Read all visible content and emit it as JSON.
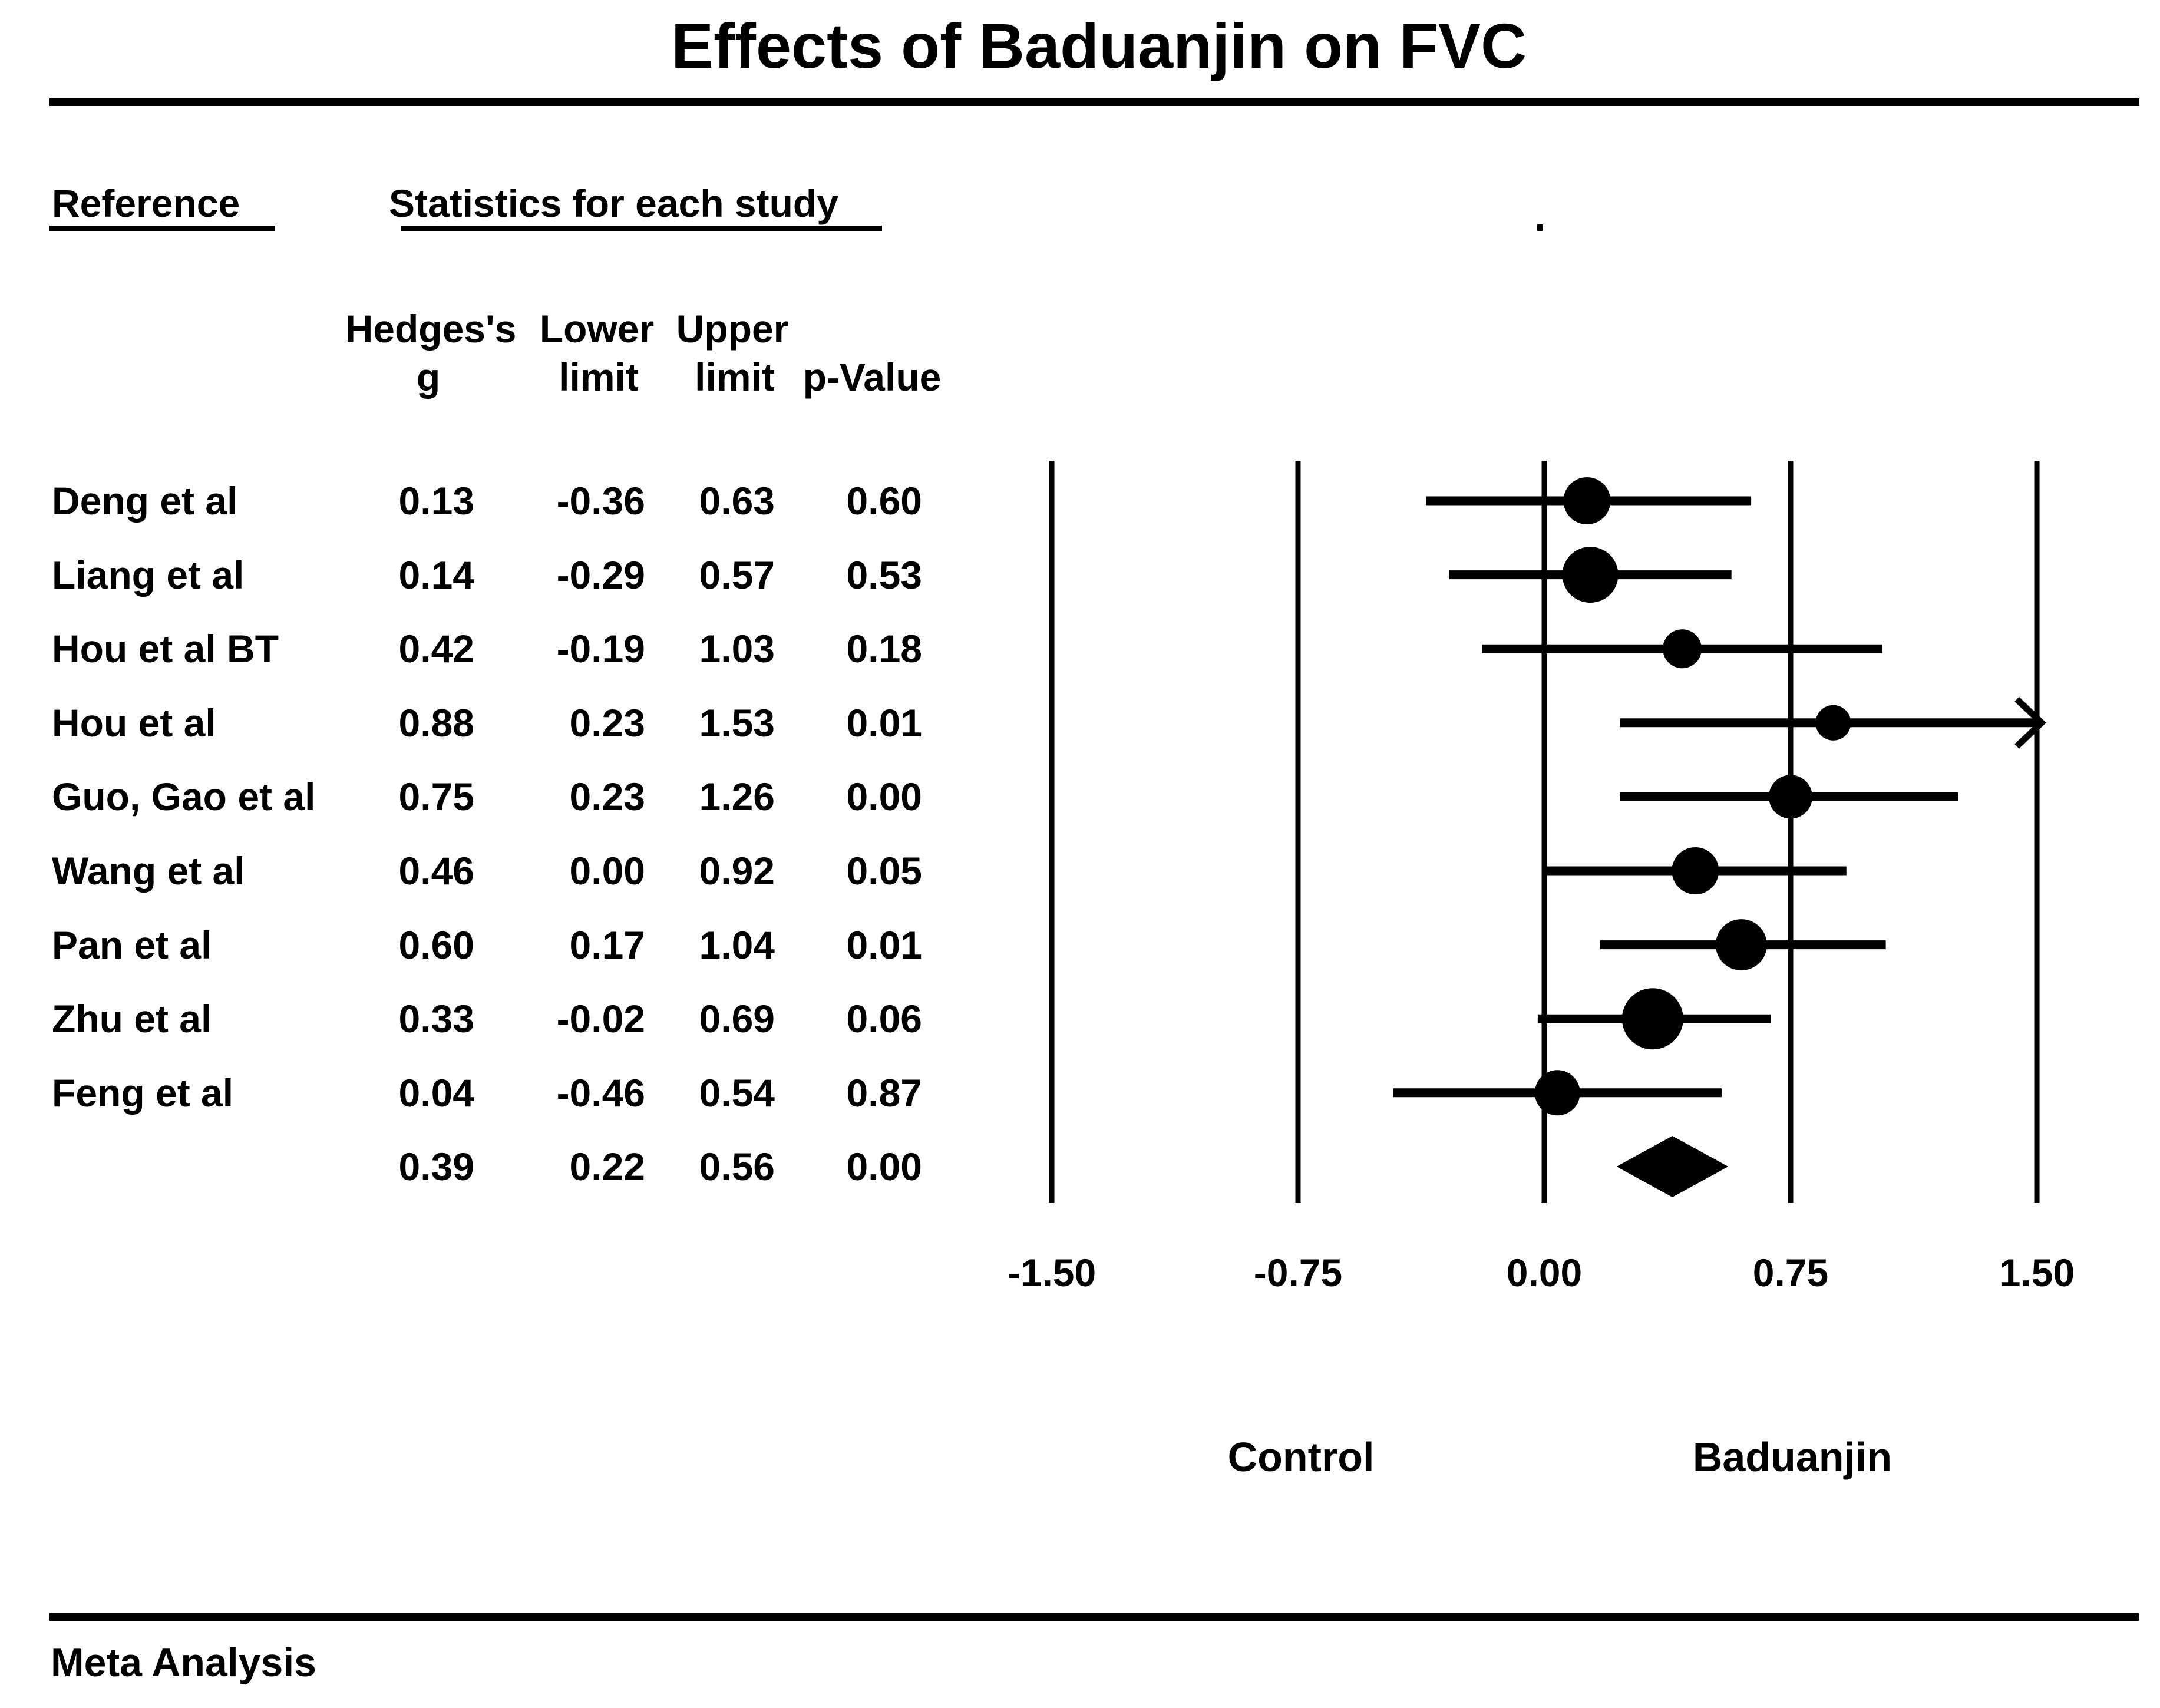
{
  "title": "Effects of Baduanjin on FVC",
  "section_headers": {
    "reference": "Reference",
    "statistics": "Statistics for each study"
  },
  "column_headers": {
    "hedges": "Hedges's",
    "lower": "Lower",
    "upper": "Upper",
    "g": "g",
    "limit1": "limit",
    "limit2": "limit",
    "p": "p-Value"
  },
  "group_labels": {
    "left": "Control",
    "right": "Baduanjin"
  },
  "footer": "Meta Analysis",
  "colors": {
    "ink": "#000000",
    "background": "#ffffff"
  },
  "chart_data": {
    "type": "forest",
    "title": "Effects of Baduanjin on FVC",
    "effect_measure": "Hedges's g",
    "xlim": [
      -1.5,
      1.5
    ],
    "ticks": [
      {
        "value": -1.5,
        "label": "-1.50"
      },
      {
        "value": -0.75,
        "label": "-0.75"
      },
      {
        "value": 0.0,
        "label": "0.00"
      },
      {
        "value": 0.75,
        "label": "0.75"
      },
      {
        "value": 1.5,
        "label": "1.50"
      }
    ],
    "studies": [
      {
        "name": "Deng et al",
        "g": 0.13,
        "lower": -0.36,
        "upper": 0.63,
        "labels": {
          "g": "0.13",
          "lower": "-0.36",
          "upper": "0.63",
          "p": "0.60"
        },
        "marker_px": 80
      },
      {
        "name": "Liang et al",
        "g": 0.14,
        "lower": -0.29,
        "upper": 0.57,
        "labels": {
          "g": "0.14",
          "lower": "-0.29",
          "upper": "0.57",
          "p": "0.53"
        },
        "marker_px": 95
      },
      {
        "name": "Hou et al  BT",
        "g": 0.42,
        "lower": -0.19,
        "upper": 1.03,
        "labels": {
          "g": "0.42",
          "lower": "-0.19",
          "upper": "1.03",
          "p": "0.18"
        },
        "marker_px": 66
      },
      {
        "name": "Hou et al",
        "g": 0.88,
        "lower": 0.23,
        "upper": 1.53,
        "labels": {
          "g": "0.88",
          "lower": "0.23",
          "upper": "1.53",
          "p": "0.01"
        },
        "marker_px": 60
      },
      {
        "name": "Guo, Gao et al",
        "g": 0.75,
        "lower": 0.23,
        "upper": 1.26,
        "labels": {
          "g": "0.75",
          "lower": "0.23",
          "upper": "1.26",
          "p": "0.00"
        },
        "marker_px": 74
      },
      {
        "name": "Wang et al",
        "g": 0.46,
        "lower": 0.0,
        "upper": 0.92,
        "labels": {
          "g": "0.46",
          "lower": "0.00",
          "upper": "0.92",
          "p": "0.05"
        },
        "marker_px": 80
      },
      {
        "name": "Pan et al",
        "g": 0.6,
        "lower": 0.17,
        "upper": 1.04,
        "labels": {
          "g": "0.60",
          "lower": "0.17",
          "upper": "1.04",
          "p": "0.01"
        },
        "marker_px": 87
      },
      {
        "name": "Zhu et al",
        "g": 0.33,
        "lower": -0.02,
        "upper": 0.69,
        "labels": {
          "g": "0.33",
          "lower": "-0.02",
          "upper": "0.69",
          "p": "0.06"
        },
        "marker_px": 104
      },
      {
        "name": "Feng et al",
        "g": 0.04,
        "lower": -0.46,
        "upper": 0.54,
        "labels": {
          "g": "0.04",
          "lower": "-0.46",
          "upper": "0.54",
          "p": "0.87"
        },
        "marker_px": 77
      }
    ],
    "summary": {
      "name": "",
      "g": 0.39,
      "lower": 0.22,
      "upper": 0.56,
      "labels": {
        "g": "0.39",
        "lower": "0.22",
        "upper": "0.56",
        "p": "0.00"
      },
      "marker_type": "diamond"
    },
    "legend_position": "none",
    "grid": false
  }
}
